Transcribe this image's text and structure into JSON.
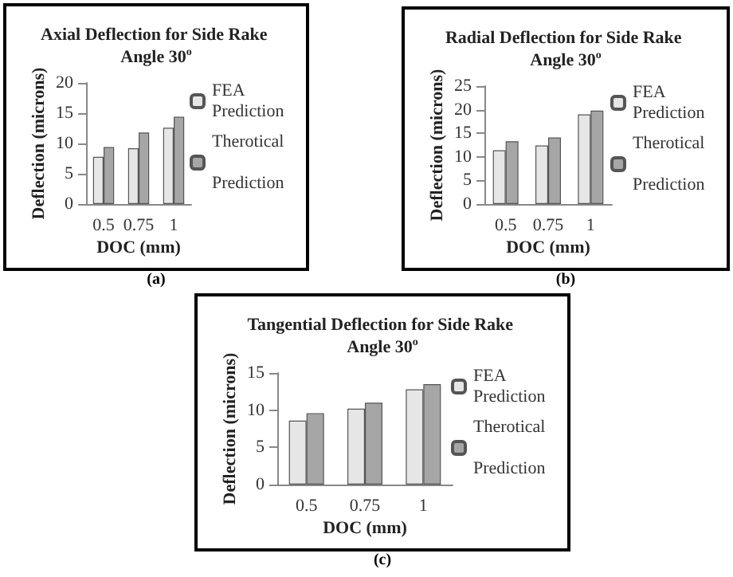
{
  "chart_data": [
    {
      "type": "bar",
      "title": "Axial Deflection for Side Rake Angle 30$^{o}$",
      "xlabel": "DOC (mm)",
      "ylabel": "Deflection (microns)",
      "categories": [
        "0.5",
        "0.75",
        "1"
      ],
      "series": [
        {
          "name": "FEA Prediction",
          "color": "#e6e6e6",
          "values": [
            7.8,
            9.2,
            12.6
          ]
        },
        {
          "name": "Therotical Prediction",
          "color": "#a6a6a6",
          "values": [
            9.4,
            11.8,
            14.4
          ]
        }
      ],
      "ylim": [
        0,
        20
      ],
      "yticks": [
        0,
        5,
        10,
        15,
        20
      ],
      "grid": false,
      "legend": "right",
      "annotations": [
        "(a)"
      ]
    },
    {
      "type": "bar",
      "title": "Radial Deflection for Side Rake Angle 30$^{o}$",
      "xlabel": "DOC (mm)",
      "ylabel": "Deflection (microns)",
      "categories": [
        "0.5",
        "0.75",
        "1"
      ],
      "series": [
        {
          "name": "FEA Prediction",
          "color": "#e6e6e6",
          "values": [
            11.4,
            12.4,
            19
          ]
        },
        {
          "name": "Therotical Prediction",
          "color": "#a6a6a6",
          "values": [
            13.3,
            14.1,
            19.8
          ]
        }
      ],
      "ylim": [
        0,
        25
      ],
      "yticks": [
        0,
        5,
        10,
        15,
        20,
        25
      ],
      "grid": false,
      "legend": "right",
      "annotations": [
        "(b)"
      ]
    },
    {
      "type": "bar",
      "title": "Tangential Deflection for Side Rake Angle 30$^{o}$",
      "xlabel": "DOC (mm)",
      "ylabel": "Deflection (microns)",
      "categories": [
        "0.5",
        "0.75",
        "1"
      ],
      "series": [
        {
          "name": "FEA Prediction",
          "color": "#e6e6e6",
          "values": [
            8.6,
            10.2,
            12.8
          ]
        },
        {
          "name": "Therotical Prediction",
          "color": "#a6a6a6",
          "values": [
            9.6,
            11.0,
            13.5
          ]
        }
      ],
      "ylim": [
        0,
        15
      ],
      "yticks": [
        0,
        5,
        10,
        15
      ],
      "grid": false,
      "legend": "right",
      "annotations": [
        "(c)"
      ]
    }
  ]
}
